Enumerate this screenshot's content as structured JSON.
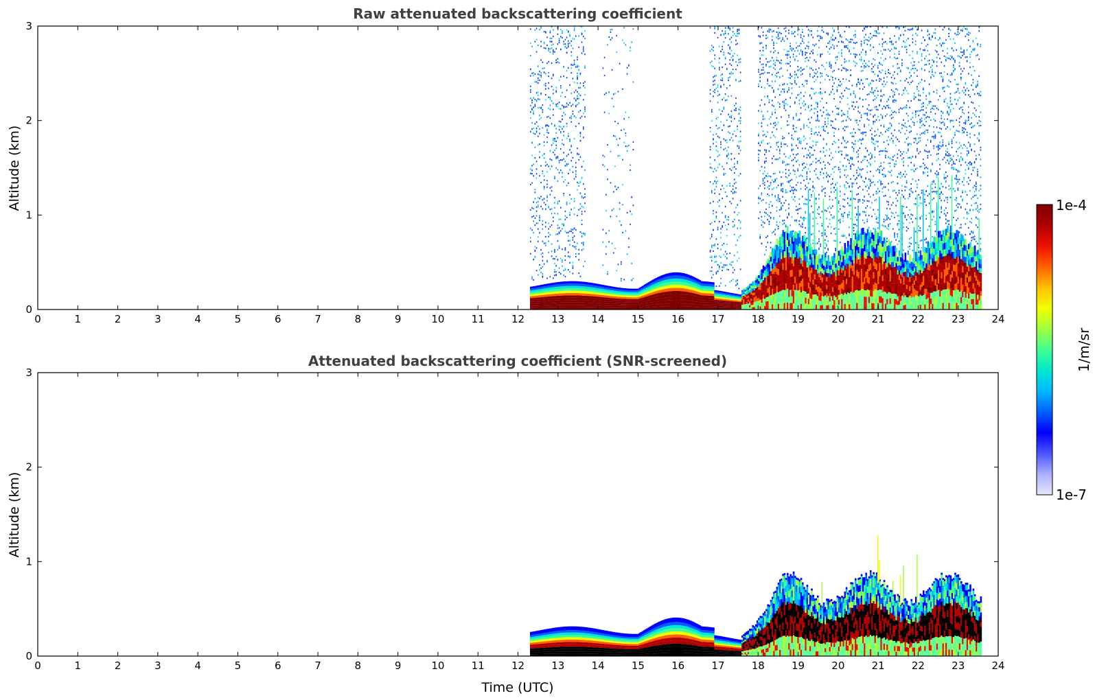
{
  "chart_data": [
    {
      "type": "heatmap",
      "title": "Raw attenuated backscattering coefficient",
      "xlabel": "",
      "ylabel": "Altitude (km)",
      "xlim": [
        0,
        24
      ],
      "ylim": [
        0,
        3
      ],
      "x_ticks": [
        "0",
        "1",
        "2",
        "3",
        "4",
        "5",
        "6",
        "7",
        "8",
        "9",
        "10",
        "11",
        "12",
        "13",
        "14",
        "15",
        "16",
        "17",
        "18",
        "19",
        "20",
        "21",
        "22",
        "23",
        "24"
      ],
      "y_ticks": [
        "0",
        "1",
        "2",
        "3"
      ],
      "data_extent_hours": [
        12.3,
        23.6
      ],
      "features": [
        {
          "time_hours": [
            12.3,
            17.6
          ],
          "layer_top_km": 0.3,
          "description": "shallow high-backscatter layer"
        },
        {
          "time_hours": [
            17.6,
            23.6
          ],
          "layer_top_km": 0.8,
          "description": "deeper mixed layer"
        }
      ]
    },
    {
      "type": "heatmap",
      "title": "Attenuated backscattering coefficient (SNR-screened)",
      "xlabel": "Time (UTC)",
      "ylabel": "Altitude (km)",
      "xlim": [
        0,
        24
      ],
      "ylim": [
        0,
        3
      ],
      "x_ticks": [
        "0",
        "1",
        "2",
        "3",
        "4",
        "5",
        "6",
        "7",
        "8",
        "9",
        "10",
        "11",
        "12",
        "13",
        "14",
        "15",
        "16",
        "17",
        "18",
        "19",
        "20",
        "21",
        "22",
        "23",
        "24"
      ],
      "y_ticks": [
        "0",
        "1",
        "2",
        "3"
      ],
      "data_extent_hours": [
        12.3,
        23.6
      ]
    }
  ],
  "panels": [
    {
      "title": "Raw attenuated backscattering coefficient",
      "ylabel": "Altitude (km)",
      "xlabel": ""
    },
    {
      "title": "Attenuated backscattering coefficient (SNR-screened)",
      "ylabel": "Altitude (km)",
      "xlabel": "Time (UTC)"
    }
  ],
  "colorbar": {
    "max_label": "1e-4",
    "min_label": "1e-7",
    "unit": "1/m/sr",
    "colors": [
      "#e8e8f8",
      "#aab0ff",
      "#4a55ff",
      "#0000ff",
      "#0060ff",
      "#00b8ff",
      "#00e8d0",
      "#40ff90",
      "#a0ff40",
      "#f0ff00",
      "#ffc000",
      "#ff6000",
      "#f01000",
      "#b00000",
      "#800000"
    ]
  }
}
